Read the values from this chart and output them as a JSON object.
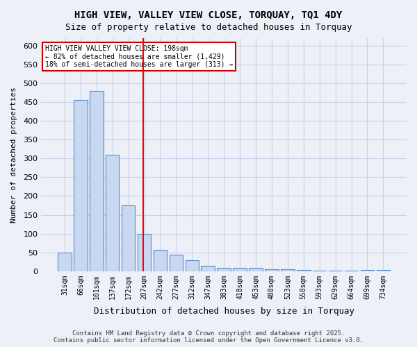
{
  "title1": "HIGH VIEW, VALLEY VIEW CLOSE, TORQUAY, TQ1 4DY",
  "title2": "Size of property relative to detached houses in Torquay",
  "xlabel": "Distribution of detached houses by size in Torquay",
  "ylabel": "Number of detached properties",
  "categories": [
    "31sqm",
    "66sqm",
    "101sqm",
    "137sqm",
    "172sqm",
    "207sqm",
    "242sqm",
    "277sqm",
    "312sqm",
    "347sqm",
    "383sqm",
    "418sqm",
    "453sqm",
    "488sqm",
    "523sqm",
    "558sqm",
    "593sqm",
    "629sqm",
    "664sqm",
    "699sqm",
    "734sqm"
  ],
  "values": [
    50,
    455,
    480,
    310,
    175,
    100,
    57,
    43,
    30,
    15,
    8,
    8,
    8,
    5,
    5,
    3,
    1,
    1,
    1,
    3,
    3
  ],
  "bar_color": "#c8d8f0",
  "bar_edge_color": "#5588cc",
  "grid_color": "#c8d0e8",
  "background_color": "#eef0f8",
  "red_line_index": 5,
  "property_size": "198sqm",
  "annotation_text": "HIGH VIEW VALLEY VIEW CLOSE: 198sqm\n← 82% of detached houses are smaller (1,429)\n18% of semi-detached houses are larger (313) →",
  "annotation_box_color": "#ffffff",
  "annotation_border_color": "#cc0000",
  "footer_text": "Contains HM Land Registry data © Crown copyright and database right 2025.\nContains public sector information licensed under the Open Government Licence v3.0.",
  "ylim": [
    0,
    620
  ],
  "yticks": [
    0,
    50,
    100,
    150,
    200,
    250,
    300,
    350,
    400,
    450,
    500,
    550,
    600
  ]
}
